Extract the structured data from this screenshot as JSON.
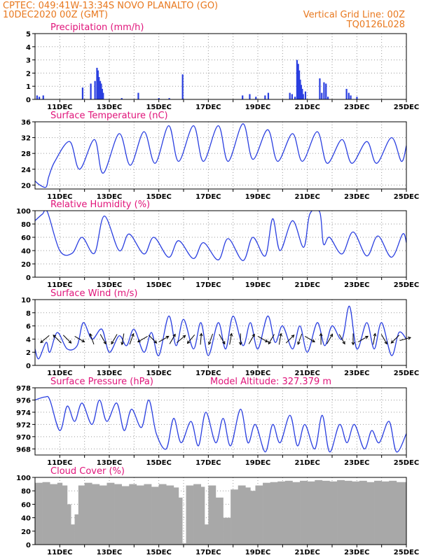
{
  "header": {
    "line1_left": "CPTEC:   049:41W-13:34S   NOVO PLANALTO (GO)",
    "line2_left": "10DEC2020 00Z (GMT)",
    "line2_right": "Vertical Grid Line: 00Z",
    "line3_right": "TQ0126L028"
  },
  "colors": {
    "header": "#e8781e",
    "title": "#e0147a",
    "series": "#2a3fe0",
    "cloud": "#a8a8a8",
    "grid": "#9a9a9a",
    "arrow": "#000000"
  },
  "x_axis": {
    "start_day": 10,
    "end_day": 25,
    "tick_labels": [
      "11DEC",
      "13DEC",
      "15DEC",
      "17DEC",
      "19DEC",
      "21DEC",
      "23DEC",
      "25DEC"
    ],
    "tick_days": [
      11,
      13,
      15,
      17,
      19,
      21,
      23,
      25
    ]
  },
  "chart_data": [
    {
      "id": "precipitation",
      "type": "bar",
      "title": "Precipitation (mm/h)",
      "ylim": [
        0,
        5
      ],
      "yticks": [
        0,
        1,
        2,
        3,
        4,
        5
      ],
      "grid": true,
      "x_unit": "day of December 2020 (UTC)",
      "x": [
        10.08,
        10.17,
        10.33,
        11.92,
        12.25,
        12.42,
        12.5,
        12.54,
        12.58,
        12.63,
        12.67,
        12.71,
        12.75,
        13.5,
        14.17,
        15.0,
        15.42,
        15.96,
        18.38,
        18.67,
        18.92,
        19.29,
        19.42,
        20.29,
        20.38,
        20.5,
        20.58,
        20.63,
        20.67,
        20.71,
        20.75,
        20.79,
        20.83,
        20.92,
        21.5,
        21.58,
        21.67,
        21.75,
        21.83,
        22.58,
        22.67,
        22.75,
        23.0
      ],
      "values": [
        0.3,
        0.2,
        0.3,
        0.9,
        1.2,
        1.4,
        2.4,
        2.2,
        1.7,
        1.4,
        1.2,
        0.8,
        0.5,
        0.1,
        0.5,
        0.1,
        0.1,
        1.9,
        0.3,
        0.4,
        0.2,
        0.3,
        0.5,
        0.5,
        0.4,
        0.2,
        3.0,
        2.7,
        2.2,
        1.5,
        1.1,
        0.8,
        0.4,
        0.6,
        1.6,
        0.5,
        1.3,
        1.2,
        0.2,
        0.8,
        0.5,
        0.3,
        0.2
      ]
    },
    {
      "id": "temperature",
      "type": "line",
      "title": "Surface Temperature (nC)",
      "ylim": [
        19,
        36
      ],
      "yticks": [
        20,
        24,
        28,
        32,
        36
      ],
      "grid": true,
      "x_unit": "day of December 2020 (UTC)",
      "x": [
        10.0,
        10.2,
        10.45,
        10.55,
        10.8,
        11.4,
        11.8,
        12.4,
        12.75,
        13.4,
        13.85,
        14.4,
        14.85,
        15.4,
        15.8,
        16.4,
        16.8,
        17.4,
        17.8,
        18.4,
        18.8,
        19.4,
        19.8,
        20.4,
        20.8,
        21.4,
        21.8,
        22.4,
        22.8,
        23.4,
        23.8,
        24.4,
        24.8,
        25.0
      ],
      "values": [
        21.0,
        20.0,
        19.5,
        22.0,
        26.0,
        31.0,
        24.0,
        31.5,
        23.0,
        33.0,
        25.0,
        33.5,
        25.5,
        35.0,
        26.0,
        35.0,
        26.0,
        35.0,
        26.0,
        35.5,
        26.5,
        34.0,
        26.0,
        33.0,
        26.0,
        33.5,
        25.5,
        31.5,
        25.5,
        31.0,
        25.5,
        32.0,
        26.0,
        30.0
      ]
    },
    {
      "id": "humidity",
      "type": "line",
      "title": "Relative Humidity (%)",
      "ylim": [
        0,
        100
      ],
      "yticks": [
        0,
        20,
        40,
        60,
        80,
        100
      ],
      "grid": true,
      "x_unit": "day of December 2020 (UTC)",
      "x": [
        10.0,
        10.3,
        10.5,
        11.0,
        11.5,
        11.9,
        12.4,
        12.8,
        13.4,
        13.8,
        14.4,
        14.8,
        15.4,
        15.8,
        16.4,
        16.8,
        17.4,
        17.8,
        18.4,
        18.8,
        19.3,
        19.6,
        19.9,
        20.4,
        20.85,
        21.1,
        21.5,
        21.65,
        21.9,
        22.4,
        22.85,
        23.4,
        23.85,
        24.4,
        24.85,
        25.0
      ],
      "values": [
        85.0,
        95.0,
        98.0,
        40.0,
        36.0,
        60.0,
        36.0,
        92.0,
        40.0,
        65.0,
        35.0,
        60.0,
        30.0,
        55.0,
        28.0,
        52.0,
        26.0,
        58.0,
        25.0,
        60.0,
        32.0,
        88.0,
        40.0,
        85.0,
        45.0,
        95.0,
        98.0,
        50.0,
        60.0,
        35.0,
        68.0,
        32.0,
        62.0,
        30.0,
        65.0,
        52.0
      ]
    },
    {
      "id": "wind",
      "type": "line",
      "title": "Surface Wind (m/s)",
      "ylim": [
        0,
        10
      ],
      "yticks": [
        0,
        2,
        4,
        6,
        8,
        10
      ],
      "grid": true,
      "x_unit": "day of December 2020 (UTC)",
      "x": [
        10.0,
        10.15,
        10.45,
        10.6,
        10.9,
        11.3,
        11.7,
        11.95,
        12.3,
        12.7,
        13.0,
        13.4,
        13.7,
        14.0,
        14.4,
        14.7,
        15.0,
        15.4,
        15.7,
        16.0,
        16.4,
        16.7,
        17.0,
        17.4,
        17.7,
        18.0,
        18.4,
        18.7,
        19.0,
        19.4,
        19.7,
        20.0,
        20.4,
        20.7,
        21.0,
        21.4,
        21.7,
        22.0,
        22.4,
        22.7,
        23.0,
        23.4,
        23.7,
        24.0,
        24.4,
        24.7,
        25.0
      ],
      "values": [
        2.5,
        1.0,
        3.5,
        2.0,
        5.0,
        2.5,
        3.0,
        6.5,
        4.0,
        5.5,
        2.0,
        4.5,
        3.0,
        5.5,
        2.0,
        5.0,
        1.5,
        7.5,
        3.0,
        7.0,
        2.5,
        6.5,
        1.5,
        6.5,
        2.5,
        7.5,
        3.0,
        6.5,
        2.5,
        7.5,
        3.5,
        6.0,
        2.5,
        6.0,
        2.0,
        6.5,
        3.0,
        6.0,
        4.0,
        9.0,
        2.5,
        6.5,
        2.5,
        6.5,
        1.5,
        5.0,
        4.0
      ],
      "arrow_x": [
        10.4,
        10.9,
        11.3,
        11.8,
        12.3,
        12.75,
        13.2,
        13.55,
        13.9,
        14.35,
        14.75,
        15.2,
        15.55,
        15.9,
        16.3,
        16.7,
        17.1,
        17.55,
        17.9,
        18.3,
        18.75,
        19.2,
        19.55,
        19.9,
        20.3,
        20.7,
        21.1,
        21.55,
        21.9,
        22.4,
        22.85,
        23.25,
        23.7,
        24.1,
        24.55,
        24.95
      ],
      "arrow_direction_deg": [
        220,
        135,
        315,
        330,
        110,
        300,
        240,
        260,
        70,
        210,
        315,
        30,
        60,
        40,
        230,
        85,
        250,
        300,
        80,
        270,
        60,
        330,
        240,
        80,
        45,
        250,
        330,
        90,
        60,
        300,
        270,
        30,
        80,
        300,
        225,
        15
      ]
    },
    {
      "id": "pressure",
      "type": "line",
      "title": "Surface Pressure (hPa)",
      "annotation": "Model Altitude: 327.379 m",
      "ylim": [
        967,
        978
      ],
      "yticks": [
        968,
        970,
        972,
        974,
        976,
        978
      ],
      "grid": true,
      "x_unit": "day of December 2020 (UTC)",
      "x": [
        10.0,
        10.4,
        10.6,
        11.0,
        11.3,
        11.6,
        11.9,
        12.3,
        12.6,
        12.9,
        13.3,
        13.6,
        13.9,
        14.3,
        14.6,
        14.9,
        15.3,
        15.6,
        15.9,
        16.3,
        16.6,
        16.9,
        17.3,
        17.6,
        17.9,
        18.3,
        18.6,
        18.9,
        19.3,
        19.6,
        19.9,
        20.3,
        20.6,
        20.9,
        21.3,
        21.6,
        21.9,
        22.3,
        22.6,
        22.9,
        23.3,
        23.6,
        23.9,
        24.3,
        24.6,
        25.0
      ],
      "values": [
        976.0,
        976.5,
        976.0,
        971.0,
        975.0,
        972.5,
        975.5,
        972.0,
        976.0,
        972.5,
        975.5,
        971.0,
        974.5,
        971.5,
        976.0,
        970.5,
        968.0,
        973.0,
        969.0,
        972.5,
        968.5,
        974.0,
        969.0,
        973.0,
        968.5,
        974.5,
        969.0,
        972.0,
        967.5,
        972.0,
        969.0,
        973.5,
        968.5,
        972.0,
        968.0,
        973.5,
        967.5,
        972.0,
        969.0,
        972.0,
        968.0,
        971.0,
        969.0,
        972.5,
        967.5,
        970.5
      ]
    },
    {
      "id": "cloud",
      "type": "area",
      "title": "Cloud Cover (%)",
      "ylim": [
        0,
        100
      ],
      "yticks": [
        0,
        20,
        40,
        60,
        80,
        100
      ],
      "grid": true,
      "x_unit": "day of December 2020 (UTC)",
      "x": [
        10.0,
        10.3,
        10.6,
        10.9,
        11.1,
        11.3,
        11.45,
        11.6,
        11.75,
        12.0,
        12.3,
        12.6,
        12.9,
        13.2,
        13.5,
        13.8,
        14.1,
        14.4,
        14.7,
        15.0,
        15.3,
        15.6,
        15.8,
        15.95,
        16.1,
        16.4,
        16.7,
        16.85,
        17.0,
        17.3,
        17.6,
        17.9,
        18.2,
        18.5,
        18.7,
        18.9,
        19.2,
        19.5,
        19.8,
        20.1,
        20.4,
        20.7,
        21.0,
        21.3,
        21.6,
        21.9,
        22.2,
        22.5,
        22.8,
        23.1,
        23.4,
        23.7,
        24.0,
        24.3,
        24.6,
        25.0
      ],
      "values": [
        92,
        93,
        90,
        92,
        88,
        60,
        30,
        45,
        88,
        92,
        90,
        88,
        92,
        90,
        87,
        90,
        88,
        90,
        86,
        90,
        88,
        85,
        70,
        2,
        88,
        90,
        86,
        30,
        88,
        70,
        40,
        82,
        88,
        85,
        80,
        88,
        92,
        93,
        94,
        95,
        93,
        95,
        94,
        96,
        95,
        94,
        96,
        95,
        94,
        95,
        93,
        95,
        94,
        95,
        93,
        92
      ]
    }
  ]
}
